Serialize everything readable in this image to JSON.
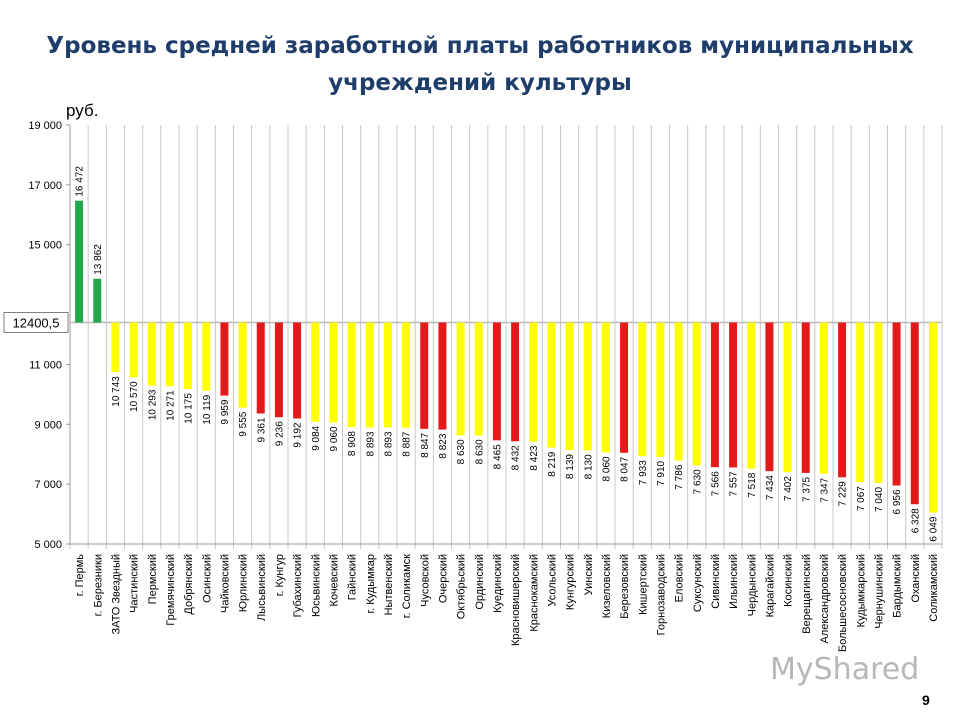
{
  "title_line1": "Уровень средней заработной платы работников муниципальных",
  "title_line2": "учреждений культуры",
  "page_number": "9",
  "watermark": "MyShared",
  "chart_data": {
    "type": "bar",
    "title": "Уровень средней заработной платы работников муниципальных учреждений культуры",
    "ylabel": "руб.",
    "ylim": [
      5000,
      19000
    ],
    "baseline": 12400.5,
    "baseline_label": "12400,5",
    "yticks": [
      {
        "value": 19000,
        "label": "19 000"
      },
      {
        "value": 17000,
        "label": "17 000"
      },
      {
        "value": 15000,
        "label": "15 000"
      },
      {
        "value": 11000,
        "label": "11 000"
      },
      {
        "value": 9000,
        "label": "9 000"
      },
      {
        "value": 7000,
        "label": "7 000"
      },
      {
        "value": 5000,
        "label": "5 000"
      }
    ],
    "grid": "vertical",
    "colors": {
      "green": "#22a84a",
      "yellow": "#ffff00",
      "red": "#e41a1a"
    },
    "categories": [
      "г. Пермь",
      "г. Березники",
      "ЗАТО Звездный",
      "Частинский",
      "Пермский",
      "Гремячинский",
      "Добрянский",
      "Осинский",
      "Чайковский",
      "Юрлинский",
      "Лысьвинский",
      "г. Кунгур",
      "Губахинский",
      "Юсьвинский",
      "Кочевский",
      "Гайнский",
      "г. Кудымкар",
      "Нытвенский",
      "г. Соликамск",
      "Чусовской",
      "Очерский",
      "Октябрьский",
      "Ординский",
      "Куединский",
      "Красновишерский",
      "Краснокамский",
      "Усольский",
      "Кунгурский",
      "Уинский",
      "Кизеловский",
      "Березовский",
      "Кишертский",
      "Горнозаводский",
      "Еловский",
      "Суксунский",
      "Сивинский",
      "Ильинский",
      "Чердынский",
      "Карагайский",
      "Косинский",
      "Верещагинский",
      "Александровский",
      "Большесосновский",
      "Кудымкарский",
      "Чернушинский",
      "Бардымский",
      "Оханский",
      "Соликамский"
    ],
    "values": [
      16472,
      13862,
      10743,
      10570,
      10293,
      10271,
      10175,
      10119,
      9959,
      9555,
      9361,
      9236,
      9192,
      9084,
      9060,
      8908,
      8893,
      8893,
      8887,
      8847,
      8823,
      8630,
      8630,
      8465,
      8432,
      8423,
      8219,
      8139,
      8130,
      8060,
      8047,
      7933,
      7910,
      7786,
      7630,
      7566,
      7557,
      7518,
      7434,
      7402,
      7375,
      7347,
      7229,
      7067,
      7040,
      6956,
      6328,
      6049
    ],
    "value_labels": [
      "16 472",
      "13 862",
      "10 743",
      "10 570",
      "10 293",
      "10 271",
      "10 175",
      "10 119",
      "9 959",
      "9 555",
      "9 361",
      "9 236",
      "9 192",
      "9 084",
      "9 060",
      "8 908",
      "8 893",
      "8 893",
      "8 887",
      "8 847",
      "8 823",
      "8 630",
      "8 630",
      "8 465",
      "8 432",
      "8 423",
      "8 219",
      "8 139",
      "8 130",
      "8 060",
      "8 047",
      "7 933",
      "7 910",
      "7 786",
      "7 630",
      "7 566",
      "7 557",
      "7 518",
      "7 434",
      "7 402",
      "7 375",
      "7 347",
      "7 229",
      "7 067",
      "7 040",
      "6 956",
      "6 328",
      "6 049"
    ],
    "bar_colors": [
      "green",
      "green",
      "yellow",
      "yellow",
      "yellow",
      "yellow",
      "yellow",
      "yellow",
      "red",
      "yellow",
      "red",
      "red",
      "red",
      "yellow",
      "yellow",
      "yellow",
      "yellow",
      "yellow",
      "yellow",
      "red",
      "red",
      "yellow",
      "yellow",
      "red",
      "red",
      "yellow",
      "yellow",
      "yellow",
      "yellow",
      "yellow",
      "red",
      "yellow",
      "yellow",
      "yellow",
      "yellow",
      "red",
      "red",
      "yellow",
      "red",
      "yellow",
      "red",
      "yellow",
      "red",
      "yellow",
      "yellow",
      "red",
      "red",
      "yellow"
    ]
  }
}
